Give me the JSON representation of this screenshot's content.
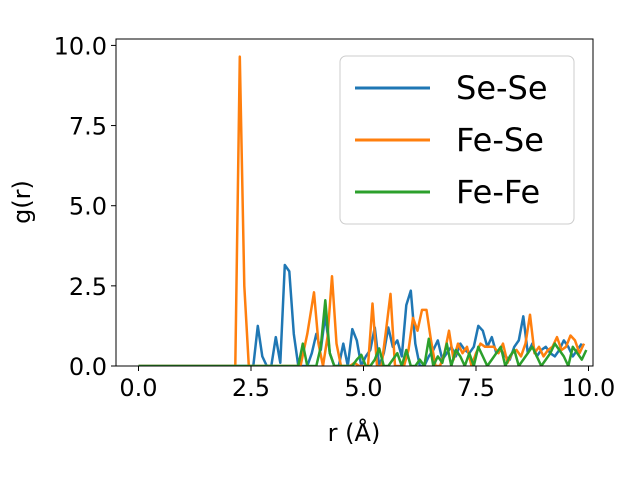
{
  "chart_data": {
    "type": "line",
    "title": "",
    "xlabel": "r (Å)",
    "ylabel": "g(r)",
    "xlim": [
      -0.5,
      10.1
    ],
    "ylim": [
      0,
      10.2
    ],
    "xticks": [
      0.0,
      2.5,
      5.0,
      7.5,
      10.0
    ],
    "xtick_labels": [
      "0.0",
      "2.5",
      "5.0",
      "7.5",
      "10.0"
    ],
    "yticks": [
      0.0,
      2.5,
      5.0,
      7.5,
      10.0
    ],
    "ytick_labels": [
      "0.0",
      "2.5",
      "5.0",
      "7.5",
      "10.0"
    ],
    "grid": false,
    "legend_position": "top-right",
    "series": [
      {
        "name": "Se-Se",
        "color": "#1f77b4",
        "x": [
          0,
          2.45,
          2.55,
          2.65,
          2.75,
          2.85,
          2.95,
          3.05,
          3.15,
          3.25,
          3.35,
          3.45,
          3.55,
          3.65,
          3.75,
          3.85,
          3.95,
          4.05,
          4.15,
          4.25,
          4.35,
          4.45,
          4.55,
          4.65,
          4.75,
          4.85,
          4.95,
          5.05,
          5.15,
          5.25,
          5.35,
          5.45,
          5.55,
          5.65,
          5.75,
          5.85,
          5.95,
          6.05,
          6.15,
          6.25,
          6.35,
          6.45,
          6.55,
          6.65,
          6.75,
          6.85,
          6.95,
          7.05,
          7.15,
          7.25,
          7.35,
          7.45,
          7.55,
          7.65,
          7.75,
          7.85,
          7.95,
          8.05,
          8.15,
          8.25,
          8.35,
          8.45,
          8.55,
          8.65,
          8.75,
          8.85,
          8.95,
          9.05,
          9.15,
          9.25,
          9.35,
          9.45,
          9.55,
          9.65,
          9.75,
          9.85
        ],
        "values": [
          0,
          0,
          0,
          1.25,
          0.3,
          0,
          0,
          0.9,
          0.1,
          3.15,
          2.95,
          1.0,
          0,
          0,
          0,
          0.4,
          1.0,
          0.5,
          1.6,
          0.4,
          0,
          0,
          0.7,
          0,
          1.15,
          0.8,
          0,
          0.3,
          0.5,
          1.2,
          0,
          0.4,
          1.2,
          0.6,
          0.8,
          0.3,
          1.9,
          2.35,
          0.7,
          0,
          0,
          0.3,
          0.5,
          0.8,
          0.2,
          0.4,
          0.6,
          0.3,
          0.7,
          0.5,
          0.4,
          0.6,
          1.25,
          1.1,
          0.6,
          0.9,
          0.4,
          0.5,
          0.3,
          0.2,
          0.6,
          0.8,
          1.55,
          0.4,
          0.7,
          0.3,
          0.5,
          0.6,
          0.4,
          0.3,
          0.5,
          0.8,
          0.6,
          0.3,
          0.5,
          0.7
        ]
      },
      {
        "name": "Fe-Se",
        "color": "#ff7f0e",
        "x": [
          0,
          2.15,
          2.25,
          2.35,
          2.45,
          2.55,
          3.6,
          3.75,
          3.9,
          4.0,
          4.1,
          4.2,
          4.3,
          4.4,
          4.5,
          4.6,
          4.7,
          4.8,
          4.9,
          5.0,
          5.1,
          5.2,
          5.3,
          5.4,
          5.5,
          5.6,
          5.7,
          5.8,
          5.9,
          6.0,
          6.1,
          6.2,
          6.3,
          6.4,
          6.5,
          6.6,
          6.7,
          6.8,
          6.9,
          7.0,
          7.1,
          7.2,
          7.3,
          7.4,
          7.5,
          7.6,
          7.7,
          7.8,
          7.9,
          8.0,
          8.1,
          8.2,
          8.3,
          8.4,
          8.5,
          8.6,
          8.7,
          8.8,
          8.9,
          9.0,
          9.1,
          9.2,
          9.3,
          9.4,
          9.5,
          9.6,
          9.7,
          9.8,
          9.9
        ],
        "values": [
          0,
          0,
          9.65,
          2.5,
          0,
          0,
          0,
          1.0,
          2.3,
          0.7,
          0,
          0.9,
          2.8,
          0.7,
          0,
          0,
          0,
          0.1,
          0,
          0,
          0,
          1.95,
          0,
          0,
          1.1,
          2.25,
          0,
          0,
          0,
          0.5,
          1.5,
          1.1,
          1.75,
          1.75,
          0.8,
          0,
          0,
          0.4,
          1.1,
          0.2,
          0.7,
          0.4,
          0.6,
          0,
          0.4,
          0.7,
          0.6,
          0.6,
          0.6,
          0.4,
          0.7,
          0.1,
          0.4,
          0.5,
          0.3,
          0.7,
          1.6,
          0.4,
          0.6,
          0.3,
          0.5,
          0.6,
          0.9,
          0.5,
          0.6,
          0.95,
          0.8,
          0.4,
          0.7
        ]
      },
      {
        "name": "Fe-Fe",
        "color": "#2ca02c",
        "x": [
          0,
          3.55,
          3.65,
          3.75,
          3.85,
          3.95,
          4.05,
          4.15,
          4.25,
          4.35,
          4.45,
          4.55,
          4.65,
          4.75,
          4.85,
          4.95,
          5.05,
          5.15,
          5.25,
          5.35,
          5.45,
          5.55,
          5.65,
          5.75,
          5.85,
          5.95,
          6.05,
          6.15,
          6.25,
          6.35,
          6.45,
          6.55,
          6.65,
          6.75,
          6.85,
          6.95,
          7.05,
          7.15,
          7.25,
          7.35,
          7.45,
          7.55,
          7.65,
          7.75,
          7.85,
          7.95,
          8.05,
          8.15,
          8.25,
          8.35,
          8.45,
          8.55,
          8.65,
          8.75,
          8.85,
          8.95,
          9.05,
          9.15,
          9.25,
          9.35,
          9.45,
          9.55,
          9.65,
          9.75,
          9.85,
          9.95
        ],
        "values": [
          0,
          0,
          0.7,
          0,
          0,
          0,
          0.6,
          2.05,
          0.4,
          0,
          0,
          0,
          0,
          0,
          0.2,
          0.35,
          0,
          0,
          0.2,
          0.55,
          0,
          0,
          0.2,
          0.4,
          0,
          0.5,
          0,
          0,
          0.2,
          0,
          0.85,
          0,
          0.3,
          0.1,
          0.7,
          0,
          0.5,
          0.3,
          0,
          0.4,
          0,
          0.6,
          0.3,
          0,
          0.2,
          0.4,
          0.6,
          0,
          0.3,
          0.5,
          0,
          0.2,
          0.4,
          0.6,
          0.3,
          0,
          0.2,
          0.4,
          0.7,
          0.5,
          0.3,
          0,
          0.6,
          0.4,
          0.2,
          0.5
        ]
      }
    ]
  }
}
